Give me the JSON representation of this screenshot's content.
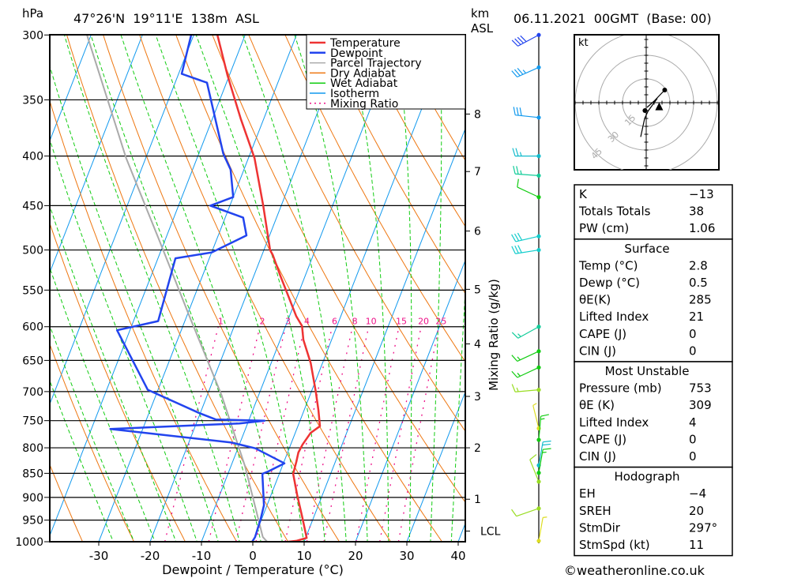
{
  "header": {
    "pressure_unit": "hPa",
    "location": "47°26'N  19°11'E  138m  ASL",
    "km_unit": "km",
    "km_unit2": "ASL",
    "datetime": "06.11.2021  00GMT  (Base: 00)"
  },
  "footer": {
    "copyright": "©weatheronline.co.uk"
  },
  "colors": {
    "temperature": "#ee3333",
    "dewpoint": "#2244ee",
    "parcel": "#aaaaaa",
    "dry_adiabat": "#ee7711",
    "wet_adiabat": "#11cc11",
    "isotherm": "#1199ee",
    "mixing_ratio": "#ee1188"
  },
  "chart_data": {
    "type": "line",
    "subtype": "skew-T log-p",
    "xlabel": "Dewpoint / Temperature (°C)",
    "ylabel": "hPa",
    "secondary_label": "Mixing Ratio (g/kg)",
    "xlim": [
      -40,
      40
    ],
    "ylim": [
      1000,
      300
    ],
    "x_ticks": [
      "-30",
      "-20",
      "-10",
      "0",
      "10",
      "20",
      "30",
      "40"
    ],
    "x_tick_values": [
      -30,
      -20,
      -10,
      0,
      10,
      20,
      30,
      40
    ],
    "y_ticks": [
      "300",
      "350",
      "400",
      "450",
      "500",
      "550",
      "600",
      "650",
      "700",
      "750",
      "800",
      "850",
      "900",
      "950",
      "1000"
    ],
    "y_tick_values": [
      300,
      350,
      400,
      450,
      500,
      550,
      600,
      650,
      700,
      750,
      800,
      850,
      900,
      950,
      1000
    ],
    "km_ticks": [
      {
        "label": "8",
        "p": 362
      },
      {
        "label": "7",
        "p": 415
      },
      {
        "label": "6",
        "p": 478
      },
      {
        "label": "5",
        "p": 549
      },
      {
        "label": "4",
        "p": 625
      },
      {
        "label": "3",
        "p": 708
      },
      {
        "label": "2",
        "p": 800
      },
      {
        "label": "1",
        "p": 904
      },
      {
        "label": "LCL",
        "p": 975
      }
    ],
    "mixing_ratio_labels": [
      "1",
      "2",
      "3",
      "4",
      "6",
      "8",
      "10",
      "15",
      "20",
      "25"
    ],
    "mixing_ratio_values": [
      1,
      2,
      3,
      4,
      6,
      8,
      10,
      15,
      20,
      25
    ],
    "legend": [
      "Temperature",
      "Dewpoint",
      "Parcel Trajectory",
      "Dry Adiabat",
      "Wet Adiabat",
      "Isotherm",
      "Mixing Ratio"
    ],
    "series": [
      {
        "name": "Temperature",
        "points": [
          [
            1004,
            4.3
          ],
          [
            998,
            8.4
          ],
          [
            991,
            10.2
          ],
          [
            944,
            7.8
          ],
          [
            895,
            5.1
          ],
          [
            851,
            2.7
          ],
          [
            827,
            2.4
          ],
          [
            809,
            2.1
          ],
          [
            794,
            2.3
          ],
          [
            772,
            3.0
          ],
          [
            760,
            4.3
          ],
          [
            732,
            2.8
          ],
          [
            699,
            0.8
          ],
          [
            654,
            -2.3
          ],
          [
            619,
            -5.5
          ],
          [
            599,
            -6.8
          ],
          [
            585,
            -8.7
          ],
          [
            532,
            -14.8
          ],
          [
            506,
            -17.9
          ],
          [
            500,
            -18.8
          ],
          [
            450,
            -23.5
          ],
          [
            402,
            -28.8
          ],
          [
            366,
            -34.5
          ],
          [
            330,
            -40.4
          ],
          [
            300,
            -45.4
          ]
        ]
      },
      {
        "name": "Dewpoint",
        "points": [
          [
            1004,
            -0.2
          ],
          [
            989,
            0.1
          ],
          [
            947,
            -0.2
          ],
          [
            917,
            -0.6
          ],
          [
            851,
            -3.3
          ],
          [
            846,
            -2.3
          ],
          [
            830,
            0.2
          ],
          [
            801,
            -6.6
          ],
          [
            790,
            -11.7
          ],
          [
            765,
            -36.3
          ],
          [
            755,
            -11.6
          ],
          [
            750,
            -6.9
          ],
          [
            748,
            -16.5
          ],
          [
            737,
            -20.1
          ],
          [
            697,
            -32.0
          ],
          [
            605,
            -42.5
          ],
          [
            592,
            -35.2
          ],
          [
            510,
            -36.6
          ],
          [
            503,
            -30.0
          ],
          [
            483,
            -24.5
          ],
          [
            463,
            -26.5
          ],
          [
            450,
            -33.8
          ],
          [
            441,
            -30.0
          ],
          [
            413,
            -32.6
          ],
          [
            398,
            -35.2
          ],
          [
            336,
            -43.8
          ],
          [
            329,
            -49.4
          ],
          [
            300,
            -50.5
          ]
        ]
      },
      {
        "name": "Parcel Trajectory",
        "points": [
          [
            1000,
            2.8
          ],
          [
            989,
            1.6
          ],
          [
            835,
            -7.3
          ],
          [
            705,
            -17.3
          ],
          [
            585,
            -29.5
          ],
          [
            485,
            -41.6
          ],
          [
            402,
            -53.8
          ],
          [
            300,
            -70.8
          ]
        ]
      }
    ]
  },
  "winds": [
    {
      "p": 300,
      "dir": 242,
      "kt": 40,
      "color": "#2244ee"
    },
    {
      "p": 324,
      "dir": 246,
      "kt": 35,
      "color": "#1199ee"
    },
    {
      "p": 365,
      "dir": 276,
      "kt": 30,
      "color": "#1199ee"
    },
    {
      "p": 400,
      "dir": 270,
      "kt": 25,
      "color": "#11bbcc"
    },
    {
      "p": 419,
      "dir": 274,
      "kt": 25,
      "color": "#11cc99"
    },
    {
      "p": 441,
      "dir": 295,
      "kt": 10,
      "color": "#11cc11"
    },
    {
      "p": 484,
      "dir": 257,
      "kt": 30,
      "color": "#11cccc"
    },
    {
      "p": 500,
      "dir": 261,
      "kt": 30,
      "color": "#11cccc"
    },
    {
      "p": 600,
      "dir": 241,
      "kt": 15,
      "color": "#11cc99"
    },
    {
      "p": 636,
      "dir": 245,
      "kt": 15,
      "color": "#11cc11"
    },
    {
      "p": 661,
      "dir": 245,
      "kt": 15,
      "color": "#11cc11"
    },
    {
      "p": 697,
      "dir": 265,
      "kt": 15,
      "color": "#99dd22"
    },
    {
      "p": 764,
      "dir": 346,
      "kt": 5,
      "color": "#dddd22"
    },
    {
      "p": 785,
      "dir": 5,
      "kt": 15,
      "color": "#11cc11"
    },
    {
      "p": 834,
      "dir": 10,
      "kt": 20,
      "color": "#11bbcc"
    },
    {
      "p": 849,
      "dir": 10,
      "kt": 15,
      "color": "#11cc11"
    },
    {
      "p": 867,
      "dir": 338,
      "kt": 10,
      "color": "#99dd22"
    },
    {
      "p": 924,
      "dir": 251,
      "kt": 10,
      "color": "#99dd22"
    },
    {
      "p": 998,
      "dir": 10,
      "kt": 5,
      "color": "#dddd22"
    }
  ],
  "hodograph": {
    "unit": "kt",
    "rings": [
      "15",
      "30",
      "45"
    ],
    "ring_values": [
      15,
      30,
      45
    ],
    "trace_uv": [
      [
        -3.5,
        -21.7
      ],
      [
        -1,
        -10
      ],
      [
        1.2,
        -5.3
      ],
      [
        7,
        2.7
      ],
      [
        0.5,
        -3
      ],
      [
        5,
        1
      ],
      [
        11.7,
        8
      ]
    ],
    "start_uv": [
      -0.8,
      -5
    ],
    "end_uv": [
      11.7,
      8
    ],
    "storm_uv": [
      8.2,
      -2.8
    ]
  },
  "indices": {
    "top": [
      {
        "label": "K",
        "value": "−13"
      },
      {
        "label": "Totals Totals",
        "value": "38"
      },
      {
        "label": "PW (cm)",
        "value": "1.06"
      }
    ],
    "surface": {
      "title": "Surface",
      "rows": [
        {
          "label": "Temp (°C)",
          "value": "2.8"
        },
        {
          "label": "Dewp (°C)",
          "value": "0.5"
        },
        {
          "label": "θE(K)",
          "value": "285"
        },
        {
          "label": "Lifted Index",
          "value": "21"
        },
        {
          "label": "CAPE (J)",
          "value": "0"
        },
        {
          "label": "CIN (J)",
          "value": "0"
        }
      ]
    },
    "most_unstable": {
      "title": "Most Unstable",
      "rows": [
        {
          "label": "Pressure (mb)",
          "value": "753"
        },
        {
          "label": "θE (K)",
          "value": "309"
        },
        {
          "label": "Lifted Index",
          "value": "4"
        },
        {
          "label": "CAPE (J)",
          "value": "0"
        },
        {
          "label": "CIN (J)",
          "value": "0"
        }
      ]
    },
    "hodograph": {
      "title": "Hodograph",
      "rows": [
        {
          "label": "EH",
          "value": "−4"
        },
        {
          "label": "SREH",
          "value": "20"
        },
        {
          "label": "StmDir",
          "value": "297°"
        },
        {
          "label": "StmSpd (kt)",
          "value": "11"
        }
      ]
    }
  }
}
